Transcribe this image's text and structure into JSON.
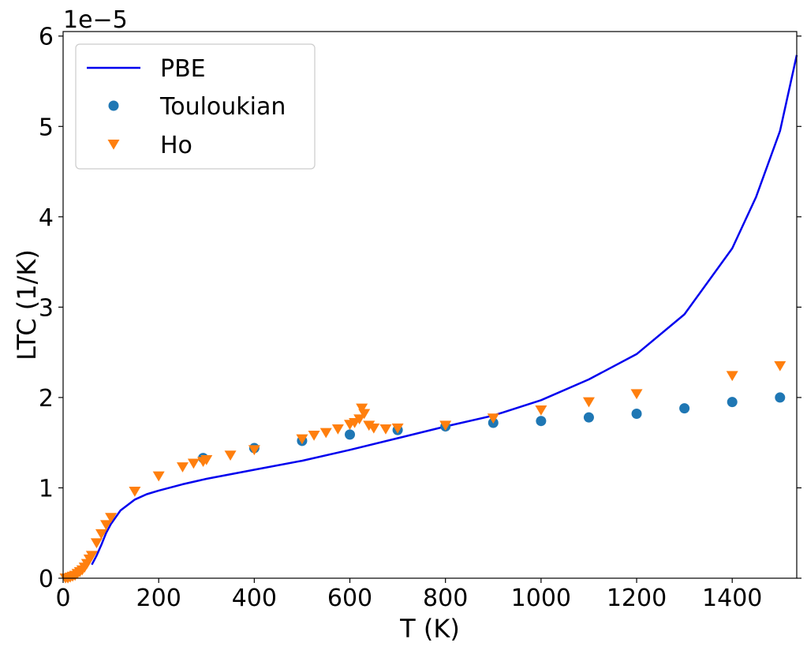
{
  "chart_data": {
    "type": "line",
    "xlabel": "T (K)",
    "ylabel": "LTC (1/K)",
    "offset_label": "1e−5",
    "xlim": [
      0,
      1535
    ],
    "ylim": [
      0,
      6.05
    ],
    "x_ticks": [
      0,
      200,
      400,
      600,
      800,
      1000,
      1200,
      1400
    ],
    "y_ticks": [
      0,
      1,
      2,
      3,
      4,
      5,
      6
    ],
    "y_scale_factor": 1e-05,
    "grid": false,
    "legend_placement": "top-left",
    "series": [
      {
        "name": "PBE",
        "kind": "line",
        "color": "#0000ee",
        "x": [
          60,
          70,
          80,
          90,
          100,
          120,
          150,
          175,
          200,
          250,
          300,
          400,
          500,
          600,
          700,
          800,
          900,
          1000,
          1100,
          1200,
          1300,
          1400,
          1450,
          1500,
          1535
        ],
        "y": [
          0.15,
          0.25,
          0.37,
          0.5,
          0.6,
          0.75,
          0.87,
          0.93,
          0.97,
          1.04,
          1.1,
          1.2,
          1.3,
          1.42,
          1.55,
          1.68,
          1.8,
          1.97,
          2.2,
          2.48,
          2.92,
          3.65,
          4.22,
          4.95,
          5.79
        ]
      },
      {
        "name": "Touloukian",
        "kind": "scatter",
        "marker": "circle",
        "color": "#1f77b4",
        "x": [
          293,
          400,
          500,
          600,
          700,
          800,
          900,
          1000,
          1100,
          1200,
          1300,
          1400,
          1500
        ],
        "y": [
          1.33,
          1.44,
          1.52,
          1.59,
          1.64,
          1.68,
          1.72,
          1.74,
          1.78,
          1.82,
          1.88,
          1.95,
          2.0
        ]
      },
      {
        "name": "Ho",
        "kind": "scatter",
        "marker": "triangle-down",
        "color": "#ff7f0e",
        "x": [
          5,
          10,
          15,
          20,
          25,
          30,
          35,
          40,
          45,
          50,
          55,
          60,
          70,
          80,
          90,
          100,
          150,
          200,
          250,
          273,
          293,
          300,
          350,
          400,
          500,
          525,
          550,
          575,
          600,
          610,
          620,
          625,
          630,
          640,
          650,
          675,
          700,
          800,
          900,
          1000,
          1100,
          1200,
          1400,
          1500
        ],
        "y": [
          0.0,
          0.0,
          0.01,
          0.02,
          0.03,
          0.05,
          0.07,
          0.09,
          0.12,
          0.16,
          0.21,
          0.25,
          0.39,
          0.49,
          0.59,
          0.67,
          0.96,
          1.13,
          1.23,
          1.27,
          1.29,
          1.31,
          1.36,
          1.42,
          1.54,
          1.58,
          1.61,
          1.65,
          1.7,
          1.72,
          1.76,
          1.88,
          1.82,
          1.69,
          1.66,
          1.65,
          1.66,
          1.69,
          1.77,
          1.86,
          1.95,
          2.04,
          2.24,
          2.35
        ]
      }
    ]
  }
}
